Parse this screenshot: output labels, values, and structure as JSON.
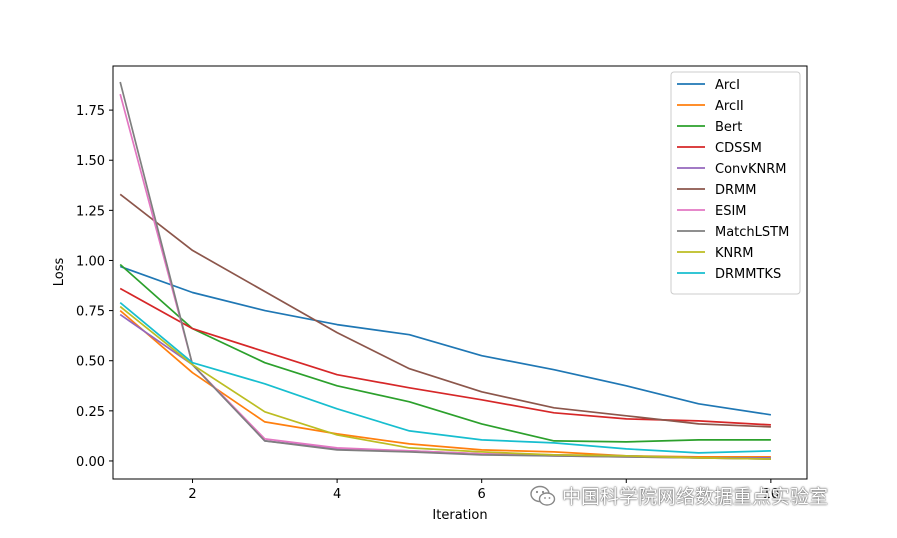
{
  "chart_data": {
    "type": "line",
    "title": "",
    "xlabel": "Iteration",
    "ylabel": "Loss",
    "xlim": [
      0.9,
      10.5
    ],
    "ylim": [
      -0.09,
      1.97
    ],
    "xticks": [
      2,
      4,
      6,
      8,
      10
    ],
    "yticks": [
      0.0,
      0.25,
      0.5,
      0.75,
      1.0,
      1.25,
      1.5,
      1.75
    ],
    "ytick_labels": [
      "0.00",
      "0.25",
      "0.50",
      "0.75",
      "1.00",
      "1.25",
      "1.50",
      "1.75"
    ],
    "xtick_labels": [
      "2",
      "4",
      "6",
      "",
      "10"
    ],
    "grid": false,
    "legend_position": "top-right",
    "x": [
      1,
      2,
      3,
      4,
      5,
      6,
      7,
      8,
      9,
      10
    ],
    "series": [
      {
        "name": "ArcI",
        "color": "#1f77b4",
        "values": [
          0.97,
          0.84,
          0.75,
          0.68,
          0.63,
          0.525,
          0.455,
          0.375,
          0.285,
          0.23
        ]
      },
      {
        "name": "ArcII",
        "color": "#ff7f0e",
        "values": [
          0.75,
          0.44,
          0.195,
          0.135,
          0.085,
          0.055,
          0.045,
          0.025,
          0.02,
          0.02
        ]
      },
      {
        "name": "Bert",
        "color": "#2ca02c",
        "values": [
          0.98,
          0.66,
          0.49,
          0.375,
          0.295,
          0.185,
          0.1,
          0.095,
          0.105,
          0.105
        ]
      },
      {
        "name": "CDSSM",
        "color": "#d62728",
        "values": [
          0.86,
          0.66,
          0.545,
          0.43,
          0.365,
          0.305,
          0.24,
          0.21,
          0.2,
          0.18
        ]
      },
      {
        "name": "ConvKNRM",
        "color": "#9467bd",
        "values": [
          0.73,
          0.48,
          0.1,
          0.06,
          0.05,
          0.035,
          0.03,
          0.025,
          0.015,
          0.015
        ]
      },
      {
        "name": "DRMM",
        "color": "#8c564b",
        "values": [
          1.33,
          1.05,
          0.845,
          0.64,
          0.46,
          0.345,
          0.265,
          0.225,
          0.185,
          0.17
        ]
      },
      {
        "name": "ESIM",
        "color": "#e377c2",
        "values": [
          1.83,
          0.48,
          0.11,
          0.065,
          0.05,
          0.035,
          0.025,
          0.02,
          0.015,
          0.01
        ]
      },
      {
        "name": "MatchLSTM",
        "color": "#7f7f7f",
        "values": [
          1.89,
          0.48,
          0.1,
          0.055,
          0.045,
          0.03,
          0.025,
          0.02,
          0.015,
          0.01
        ]
      },
      {
        "name": "KNRM",
        "color": "#bcbd22",
        "values": [
          0.77,
          0.48,
          0.245,
          0.13,
          0.065,
          0.045,
          0.03,
          0.025,
          0.015,
          0.01
        ]
      },
      {
        "name": "DRMMTKS",
        "color": "#17becf",
        "values": [
          0.79,
          0.49,
          0.385,
          0.26,
          0.15,
          0.105,
          0.09,
          0.06,
          0.04,
          0.05
        ]
      }
    ]
  },
  "watermark": {
    "text": "中国科学院网络数据重点实验室",
    "icon": "wechat-icon"
  }
}
